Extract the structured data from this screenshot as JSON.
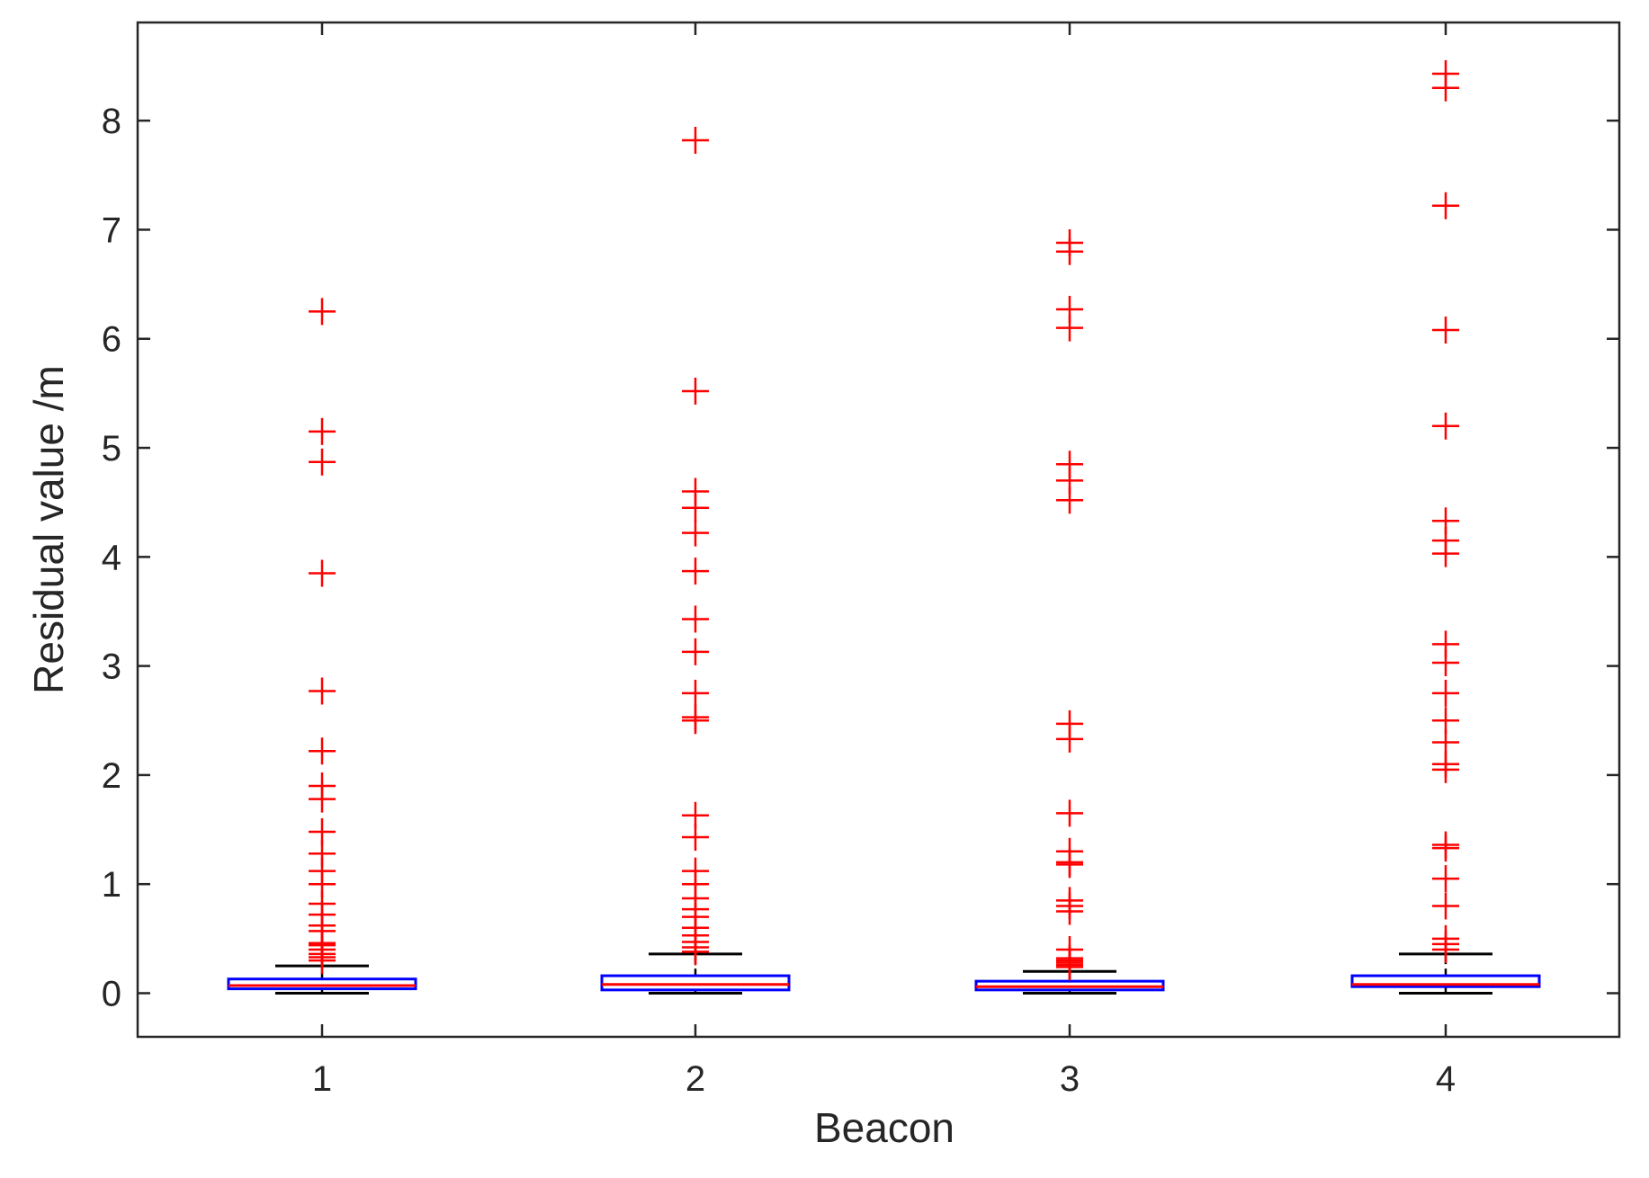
{
  "chart_data": {
    "type": "box",
    "title": "",
    "xlabel": "Beacon",
    "ylabel": "Residual value /m",
    "categories": [
      "1",
      "2",
      "3",
      "4"
    ],
    "ylim": [
      -0.4,
      8.9
    ],
    "yticks": [
      0,
      1,
      2,
      3,
      4,
      5,
      6,
      7,
      8
    ],
    "grid": false,
    "colors": {
      "box": "#0000ff",
      "median": "#ff0000",
      "whisker": "#000000",
      "outlier": "#ff0000",
      "axis": "#262626"
    },
    "boxes": [
      {
        "category": "1",
        "min": 0.0,
        "q1": 0.04,
        "median": 0.07,
        "q3": 0.13,
        "max": 0.25,
        "outliers": [
          6.25,
          5.15,
          4.87,
          3.85,
          2.77,
          2.22,
          1.9,
          1.78,
          1.48,
          1.28,
          1.12,
          1.0,
          0.82,
          0.72,
          0.62,
          0.57,
          0.46,
          0.44,
          0.4,
          0.36,
          0.33,
          0.3
        ]
      },
      {
        "category": "2",
        "min": 0.0,
        "q1": 0.03,
        "median": 0.08,
        "q3": 0.16,
        "max": 0.36,
        "outliers": [
          7.82,
          5.52,
          4.6,
          4.45,
          4.22,
          3.87,
          3.43,
          3.13,
          2.75,
          2.53,
          2.5,
          1.63,
          1.43,
          1.12,
          1.0,
          0.87,
          0.77,
          0.7,
          0.6,
          0.53,
          0.47,
          0.42,
          0.38
        ]
      },
      {
        "category": "3",
        "min": 0.0,
        "q1": 0.03,
        "median": 0.06,
        "q3": 0.11,
        "max": 0.2,
        "outliers": [
          6.88,
          6.8,
          6.27,
          6.1,
          4.85,
          4.7,
          4.52,
          2.47,
          2.33,
          1.65,
          1.3,
          1.2,
          1.18,
          0.85,
          0.8,
          0.75,
          0.4,
          0.32,
          0.3,
          0.28,
          0.26,
          0.24
        ]
      },
      {
        "category": "4",
        "min": 0.0,
        "q1": 0.06,
        "median": 0.08,
        "q3": 0.16,
        "max": 0.36,
        "outliers": [
          8.43,
          8.3,
          7.22,
          6.08,
          5.2,
          4.33,
          4.15,
          4.03,
          3.2,
          3.03,
          2.75,
          2.5,
          2.3,
          2.1,
          2.05,
          1.36,
          1.33,
          1.05,
          0.8,
          0.5,
          0.45,
          0.4
        ]
      }
    ]
  }
}
